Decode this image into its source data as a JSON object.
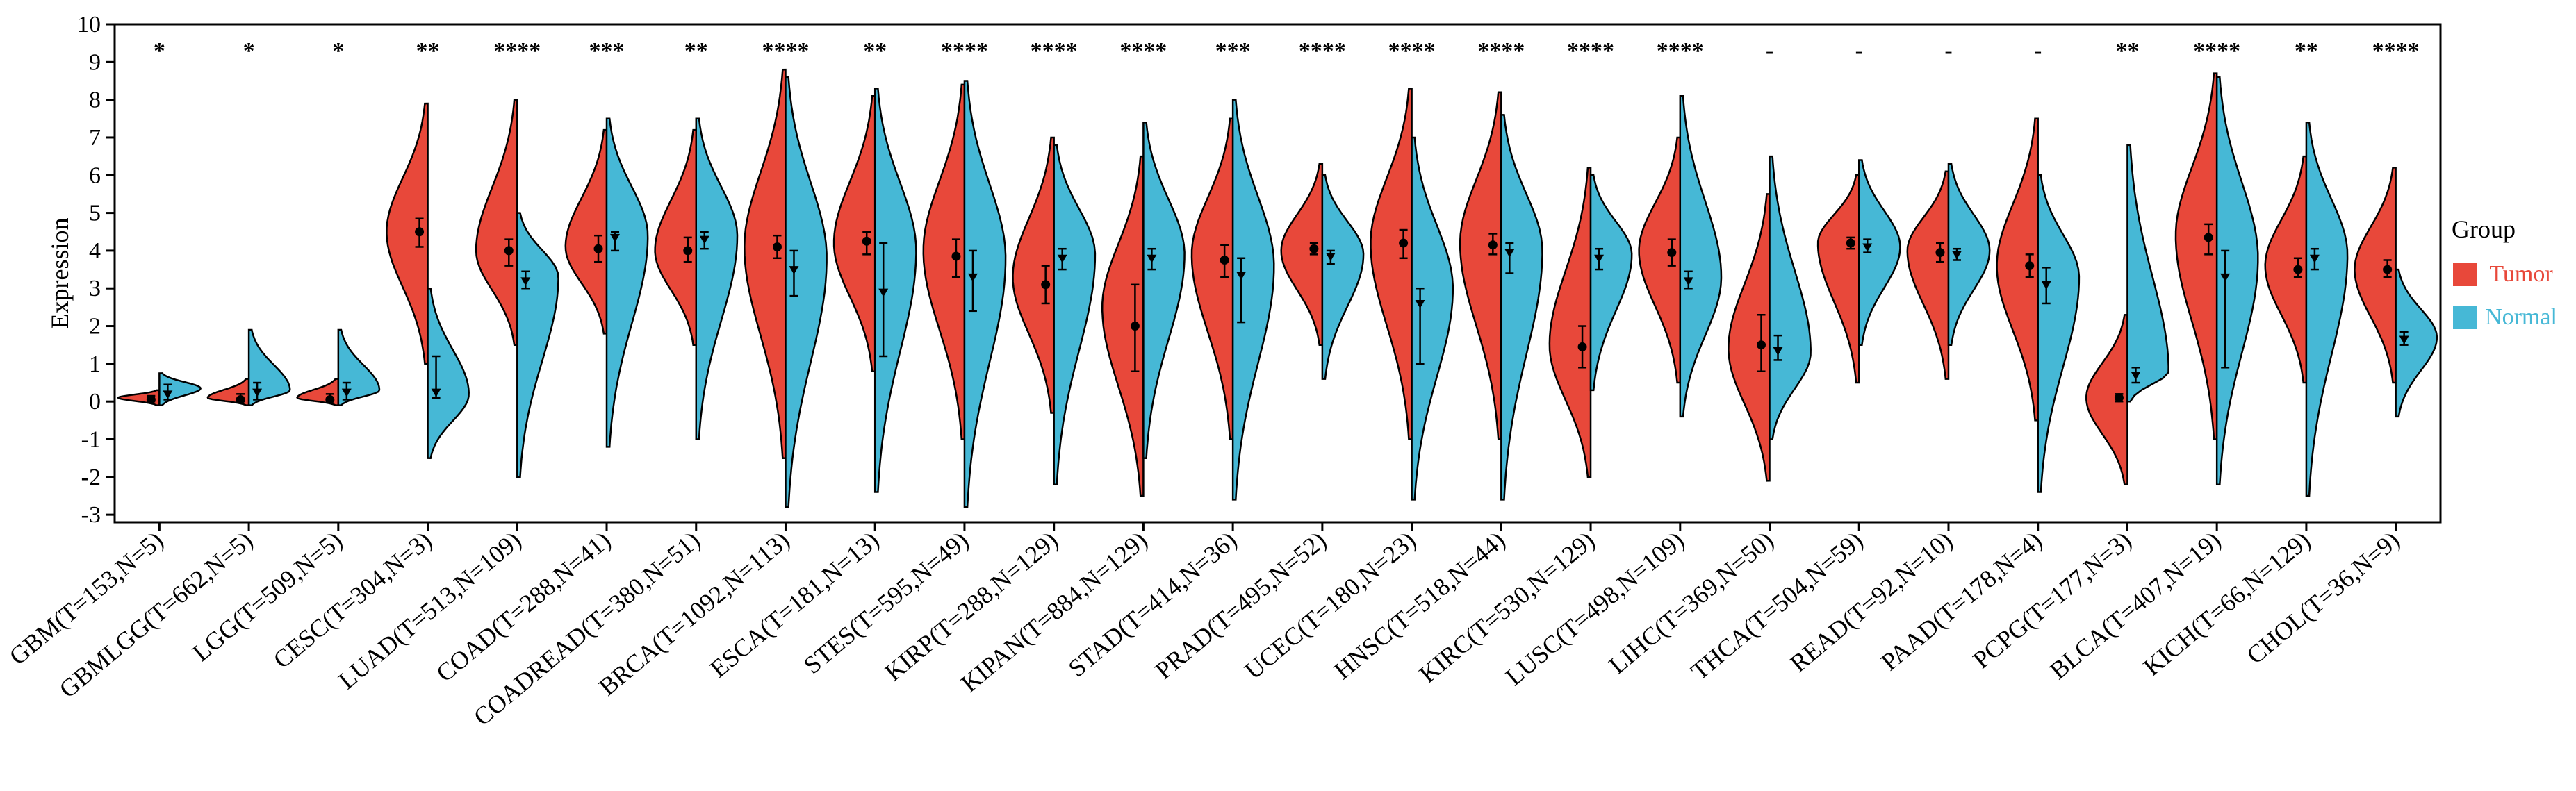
{
  "chart_data": {
    "type": "split-violin",
    "title": "",
    "xlabel": "",
    "ylabel": "Expression",
    "ylim": [
      -3.2,
      10
    ],
    "yticks": [
      "-3",
      "-2",
      "-1",
      "0",
      "1",
      "2",
      "3",
      "4",
      "5",
      "6",
      "7",
      "8",
      "9",
      "10"
    ],
    "legend": {
      "title": "Group",
      "position": "right",
      "entries": [
        {
          "name": "Tumor",
          "color": "#E8483A"
        },
        {
          "name": "Normal",
          "color": "#46B8D6"
        }
      ]
    },
    "categories": [
      {
        "label": "GBM(T=153,N=5)",
        "sig": "*",
        "tumor": {
          "min": -0.1,
          "max": 0.3,
          "median": 0.05,
          "q1": 0.0,
          "q3": 0.15,
          "mode": 0.1
        },
        "normal": {
          "min": -0.1,
          "max": 0.75,
          "median": 0.2,
          "q1": 0.05,
          "q3": 0.45,
          "mode": 0.35
        }
      },
      {
        "label": "GBMLGG(T=662,N=5)",
        "sig": "*",
        "tumor": {
          "min": -0.1,
          "max": 0.6,
          "median": 0.05,
          "q1": 0.0,
          "q3": 0.2,
          "mode": 0.1
        },
        "normal": {
          "min": -0.1,
          "max": 1.9,
          "median": 0.25,
          "q1": 0.05,
          "q3": 0.5,
          "mode": 0.3
        }
      },
      {
        "label": "LGG(T=509,N=5)",
        "sig": "*",
        "tumor": {
          "min": -0.1,
          "max": 0.6,
          "median": 0.05,
          "q1": 0.0,
          "q3": 0.2,
          "mode": 0.1
        },
        "normal": {
          "min": -0.1,
          "max": 1.9,
          "median": 0.25,
          "q1": 0.05,
          "q3": 0.5,
          "mode": 0.3
        }
      },
      {
        "label": "CESC(T=304,N=3)",
        "sig": "**",
        "tumor": {
          "min": 1.0,
          "max": 7.9,
          "median": 4.5,
          "q1": 4.1,
          "q3": 4.85,
          "mode": 4.5
        },
        "normal": {
          "min": -1.5,
          "max": 3.0,
          "median": 0.25,
          "q1": 0.1,
          "q3": 1.2,
          "mode": 0.2
        }
      },
      {
        "label": "LUAD(T=513,N=109)",
        "sig": "****",
        "tumor": {
          "min": 1.5,
          "max": 8.0,
          "median": 4.0,
          "q1": 3.6,
          "q3": 4.3,
          "mode": 4.0
        },
        "normal": {
          "min": -2.0,
          "max": 5.0,
          "median": 3.2,
          "q1": 3.0,
          "q3": 3.45,
          "mode": 3.3
        }
      },
      {
        "label": "COAD(T=288,N=41)",
        "sig": "***",
        "tumor": {
          "min": 1.8,
          "max": 7.2,
          "median": 4.05,
          "q1": 3.7,
          "q3": 4.4,
          "mode": 4.1
        },
        "normal": {
          "min": -1.2,
          "max": 7.5,
          "median": 4.35,
          "q1": 4.0,
          "q3": 4.5,
          "mode": 4.4
        }
      },
      {
        "label": "COADREAD(T=380,N=51)",
        "sig": "**",
        "tumor": {
          "min": 1.5,
          "max": 7.2,
          "median": 4.0,
          "q1": 3.7,
          "q3": 4.35,
          "mode": 4.0
        },
        "normal": {
          "min": -1.0,
          "max": 7.5,
          "median": 4.3,
          "q1": 4.05,
          "q3": 4.5,
          "mode": 4.4
        }
      },
      {
        "label": "BRCA(T=1092,N=113)",
        "sig": "****",
        "tumor": {
          "min": -1.5,
          "max": 8.8,
          "median": 4.1,
          "q1": 3.8,
          "q3": 4.4,
          "mode": 4.1
        },
        "normal": {
          "min": -2.8,
          "max": 8.6,
          "median": 3.5,
          "q1": 2.8,
          "q3": 4.0,
          "mode": 3.8
        }
      },
      {
        "label": "ESCA(T=181,N=13)",
        "sig": "**",
        "tumor": {
          "min": 0.8,
          "max": 8.1,
          "median": 4.25,
          "q1": 3.9,
          "q3": 4.5,
          "mode": 4.2
        },
        "normal": {
          "min": -2.4,
          "max": 8.3,
          "median": 2.9,
          "q1": 1.2,
          "q3": 4.2,
          "mode": 4.0
        }
      },
      {
        "label": "STES(T=595,N=49)",
        "sig": "****",
        "tumor": {
          "min": -1.0,
          "max": 8.4,
          "median": 3.85,
          "q1": 3.3,
          "q3": 4.3,
          "mode": 4.0
        },
        "normal": {
          "min": -2.8,
          "max": 8.5,
          "median": 3.3,
          "q1": 2.4,
          "q3": 4.0,
          "mode": 3.8
        }
      },
      {
        "label": "KIRP(T=288,N=129)",
        "sig": "****",
        "tumor": {
          "min": -0.3,
          "max": 7.0,
          "median": 3.1,
          "q1": 2.6,
          "q3": 3.6,
          "mode": 3.3
        },
        "normal": {
          "min": -2.2,
          "max": 6.8,
          "median": 3.8,
          "q1": 3.5,
          "q3": 4.05,
          "mode": 3.9
        }
      },
      {
        "label": "KIPAN(T=884,N=129)",
        "sig": "****",
        "tumor": {
          "min": -2.5,
          "max": 6.5,
          "median": 2.0,
          "q1": 0.8,
          "q3": 3.1,
          "mode": 2.5
        },
        "normal": {
          "min": -1.5,
          "max": 7.4,
          "median": 3.8,
          "q1": 3.5,
          "q3": 4.05,
          "mode": 3.9
        }
      },
      {
        "label": "STAD(T=414,N=36)",
        "sig": "***",
        "tumor": {
          "min": -1.0,
          "max": 7.5,
          "median": 3.75,
          "q1": 3.3,
          "q3": 4.15,
          "mode": 3.9
        },
        "normal": {
          "min": -2.6,
          "max": 8.0,
          "median": 3.35,
          "q1": 2.1,
          "q3": 3.8,
          "mode": 3.6
        }
      },
      {
        "label": "PRAD(T=495,N=52)",
        "sig": "****",
        "tumor": {
          "min": 1.5,
          "max": 6.3,
          "median": 4.05,
          "q1": 3.9,
          "q3": 4.2,
          "mode": 4.0
        },
        "normal": {
          "min": 0.6,
          "max": 6.0,
          "median": 3.85,
          "q1": 3.65,
          "q3": 4.0,
          "mode": 3.9
        }
      },
      {
        "label": "UCEC(T=180,N=23)",
        "sig": "****",
        "tumor": {
          "min": -1.0,
          "max": 8.3,
          "median": 4.2,
          "q1": 3.8,
          "q3": 4.55,
          "mode": 4.2
        },
        "normal": {
          "min": -2.6,
          "max": 7.0,
          "median": 2.6,
          "q1": 1.0,
          "q3": 3.0,
          "mode": 3.0
        }
      },
      {
        "label": "HNSC(T=518,N=44)",
        "sig": "****",
        "tumor": {
          "min": -1.0,
          "max": 8.2,
          "median": 4.15,
          "q1": 3.9,
          "q3": 4.45,
          "mode": 4.2
        },
        "normal": {
          "min": -2.6,
          "max": 7.6,
          "median": 3.95,
          "q1": 3.4,
          "q3": 4.2,
          "mode": 4.0
        }
      },
      {
        "label": "KIRC(T=530,N=129)",
        "sig": "****",
        "tumor": {
          "min": -2.0,
          "max": 6.2,
          "median": 1.45,
          "q1": 0.9,
          "q3": 2.0,
          "mode": 1.5
        },
        "normal": {
          "min": 0.3,
          "max": 6.0,
          "median": 3.8,
          "q1": 3.5,
          "q3": 4.05,
          "mode": 3.9
        }
      },
      {
        "label": "LUSC(T=498,N=109)",
        "sig": "****",
        "tumor": {
          "min": 0.5,
          "max": 7.0,
          "median": 3.95,
          "q1": 3.6,
          "q3": 4.3,
          "mode": 4.0
        },
        "normal": {
          "min": -0.4,
          "max": 8.1,
          "median": 3.2,
          "q1": 3.0,
          "q3": 3.45,
          "mode": 3.3
        }
      },
      {
        "label": "LIHC(T=369,N=50)",
        "sig": "-",
        "tumor": {
          "min": -2.1,
          "max": 5.5,
          "median": 1.5,
          "q1": 0.8,
          "q3": 2.3,
          "mode": 1.4
        },
        "normal": {
          "min": -1.0,
          "max": 6.5,
          "median": 1.35,
          "q1": 1.1,
          "q3": 1.75,
          "mode": 1.3
        }
      },
      {
        "label": "THCA(T=504,N=59)",
        "sig": "-",
        "tumor": {
          "min": 0.5,
          "max": 6.0,
          "median": 4.2,
          "q1": 4.05,
          "q3": 4.35,
          "mode": 4.2
        },
        "normal": {
          "min": 1.5,
          "max": 6.4,
          "median": 4.1,
          "q1": 3.95,
          "q3": 4.3,
          "mode": 4.1
        }
      },
      {
        "label": "READ(T=92,N=10)",
        "sig": "-",
        "tumor": {
          "min": 0.6,
          "max": 6.1,
          "median": 3.95,
          "q1": 3.7,
          "q3": 4.2,
          "mode": 4.0
        },
        "normal": {
          "min": 1.5,
          "max": 6.3,
          "median": 3.9,
          "q1": 3.75,
          "q3": 4.05,
          "mode": 4.0
        }
      },
      {
        "label": "PAAD(T=178,N=4)",
        "sig": "-",
        "tumor": {
          "min": -0.5,
          "max": 7.5,
          "median": 3.6,
          "q1": 3.3,
          "q3": 3.9,
          "mode": 3.6
        },
        "normal": {
          "min": -2.4,
          "max": 6.0,
          "median": 3.1,
          "q1": 2.6,
          "q3": 3.55,
          "mode": 3.3
        }
      },
      {
        "label": "PCPG(T=177,N=3)",
        "sig": "**",
        "tumor": {
          "min": -2.2,
          "max": 2.3,
          "median": 0.1,
          "q1": 0.0,
          "q3": 0.2,
          "mode": 0.1
        },
        "normal": {
          "min": 0.0,
          "max": 6.8,
          "median": 0.7,
          "q1": 0.5,
          "q3": 0.9,
          "mode": 0.8
        }
      },
      {
        "label": "BLCA(T=407,N=19)",
        "sig": "****",
        "tumor": {
          "min": -1.0,
          "max": 8.7,
          "median": 4.35,
          "q1": 3.9,
          "q3": 4.7,
          "mode": 4.4
        },
        "normal": {
          "min": -2.2,
          "max": 8.6,
          "median": 3.3,
          "q1": 0.9,
          "q3": 4.0,
          "mode": 3.8
        }
      },
      {
        "label": "KICH(T=66,N=129)",
        "sig": "**",
        "tumor": {
          "min": 0.5,
          "max": 6.5,
          "median": 3.5,
          "q1": 3.3,
          "q3": 3.8,
          "mode": 3.6
        },
        "normal": {
          "min": -2.5,
          "max": 7.4,
          "median": 3.8,
          "q1": 3.5,
          "q3": 4.05,
          "mode": 3.9
        }
      },
      {
        "label": "CHOL(T=36,N=9)",
        "sig": "****",
        "tumor": {
          "min": 0.5,
          "max": 6.2,
          "median": 3.5,
          "q1": 3.3,
          "q3": 3.75,
          "mode": 3.5
        },
        "normal": {
          "min": -0.4,
          "max": 3.5,
          "median": 1.65,
          "q1": 1.5,
          "q3": 1.85,
          "mode": 1.7
        }
      }
    ]
  }
}
